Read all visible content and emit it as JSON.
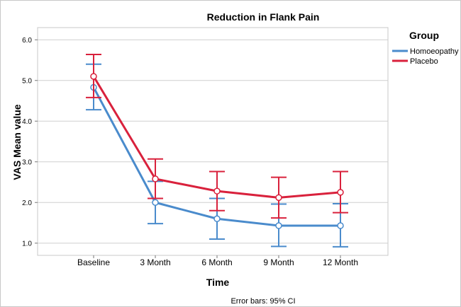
{
  "chart_data": {
    "type": "line",
    "title": "Reduction in Flank Pain",
    "xlabel": "Time",
    "ylabel": "VAS Mean value",
    "categories": [
      "Baseline",
      "3 Month",
      "6 Month",
      "9 Month",
      "12 Month"
    ],
    "yticks": [
      "1.0",
      "2.0",
      "3.0",
      "4.0",
      "5.0",
      "6.0"
    ],
    "ylim": [
      0.7,
      6.3
    ],
    "grid": true,
    "legend_title": "Group",
    "legend_position": "top-right",
    "footnote": "Error bars: 95% CI",
    "series": [
      {
        "name": "Homoeopathy",
        "color": "#4a8bcc",
        "values": [
          4.83,
          2.0,
          1.6,
          1.43,
          1.43
        ],
        "ci_low": [
          4.28,
          1.48,
          1.1,
          0.92,
          0.91
        ],
        "ci_high": [
          5.4,
          2.52,
          2.1,
          1.96,
          1.97
        ]
      },
      {
        "name": "Placebo",
        "color": "#d9213c",
        "values": [
          5.1,
          2.58,
          2.28,
          2.12,
          2.25
        ],
        "ci_low": [
          4.58,
          2.1,
          1.8,
          1.62,
          1.75
        ],
        "ci_high": [
          5.64,
          3.07,
          2.76,
          2.62,
          2.76
        ]
      }
    ]
  }
}
